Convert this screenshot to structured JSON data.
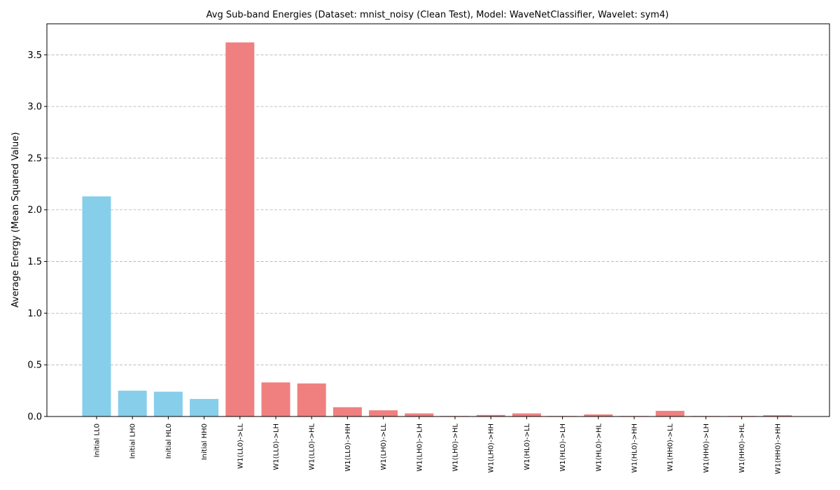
{
  "chart_data": {
    "type": "bar",
    "title": "Avg Sub-band Energies (Dataset: mnist_noisy (Clean Test), Model: WaveNetClassifier, Wavelet: sym4)",
    "xlabel": "",
    "ylabel": "Average Energy (Mean Squared Value)",
    "ylim": [
      0,
      3.8
    ],
    "yticks": [
      "0.0",
      "0.5",
      "1.0",
      "1.5",
      "2.0",
      "2.5",
      "3.0",
      "3.5"
    ],
    "grid": "y, dashed",
    "categories": [
      "Initial LL0",
      "Initial LH0",
      "Initial HL0",
      "Initial HH0",
      "W1(LL0)->LL",
      "W1(LL0)->LH",
      "W1(LL0)->HL",
      "W1(LL0)->HH",
      "W1(LH0)->LL",
      "W1(LH0)->LH",
      "W1(LH0)->HL",
      "W1(LH0)->HH",
      "W1(HL0)->LL",
      "W1(HL0)->LH",
      "W1(HL0)->HL",
      "W1(HL0)->HH",
      "W1(HH0)->LL",
      "W1(HH0)->LH",
      "W1(HH0)->HL",
      "W1(HH0)->HH"
    ],
    "values": [
      2.13,
      0.25,
      0.24,
      0.17,
      3.62,
      0.33,
      0.32,
      0.09,
      0.06,
      0.03,
      0.005,
      0.015,
      0.03,
      0.005,
      0.02,
      0.005,
      0.055,
      0.005,
      0.005,
      0.012
    ],
    "colors": [
      "#87ceeb",
      "#87ceeb",
      "#87ceeb",
      "#87ceeb",
      "#f08080",
      "#f08080",
      "#f08080",
      "#f08080",
      "#f08080",
      "#f08080",
      "#f08080",
      "#f08080",
      "#f08080",
      "#f08080",
      "#f08080",
      "#f08080",
      "#f08080",
      "#f08080",
      "#f08080",
      "#f08080"
    ]
  }
}
